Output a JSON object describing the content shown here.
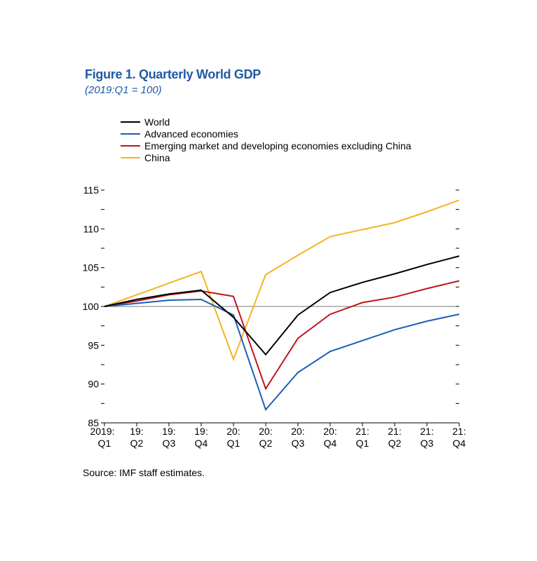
{
  "chart_data": {
    "type": "line",
    "title": "Figure 1. Quarterly World GDP",
    "subtitle": "(2019:Q1 = 100)",
    "source": "Source: IMF staff estimates.",
    "categories": [
      {
        "top": "2019:",
        "bottom": "Q1"
      },
      {
        "top": "19:",
        "bottom": "Q2"
      },
      {
        "top": "19:",
        "bottom": "Q3"
      },
      {
        "top": "19:",
        "bottom": "Q4"
      },
      {
        "top": "20:",
        "bottom": "Q1"
      },
      {
        "top": "20:",
        "bottom": "Q2"
      },
      {
        "top": "20:",
        "bottom": "Q3"
      },
      {
        "top": "20:",
        "bottom": "Q4"
      },
      {
        "top": "21:",
        "bottom": "Q1"
      },
      {
        "top": "21:",
        "bottom": "Q2"
      },
      {
        "top": "21:",
        "bottom": "Q3"
      },
      {
        "top": "21:",
        "bottom": "Q4"
      }
    ],
    "ylim": [
      85,
      115
    ],
    "yticks": [
      85,
      90,
      95,
      100,
      105,
      110,
      115
    ],
    "reference_line": 100,
    "series": [
      {
        "name": "World",
        "color": "#000000",
        "values": [
          100,
          100.9,
          101.6,
          102.1,
          98.6,
          93.8,
          98.9,
          101.8,
          103.1,
          104.2,
          105.4,
          106.5
        ]
      },
      {
        "name": "Advanced economies",
        "color": "#1a5fb4",
        "values": [
          100,
          100.4,
          100.8,
          100.9,
          98.9,
          86.7,
          91.5,
          94.2,
          95.6,
          97.0,
          98.1,
          99.0
        ]
      },
      {
        "name": "Emerging market and developing economies excluding China",
        "color": "#c0141c",
        "values": [
          100,
          100.7,
          101.5,
          102.0,
          101.3,
          89.4,
          95.9,
          99.0,
          100.5,
          101.2,
          102.3,
          103.3
        ]
      },
      {
        "name": "China",
        "color": "#f5b324",
        "values": [
          100,
          101.5,
          103.0,
          104.5,
          93.2,
          104.1,
          106.6,
          109.0,
          109.9,
          110.8,
          112.2,
          113.7
        ]
      }
    ]
  }
}
